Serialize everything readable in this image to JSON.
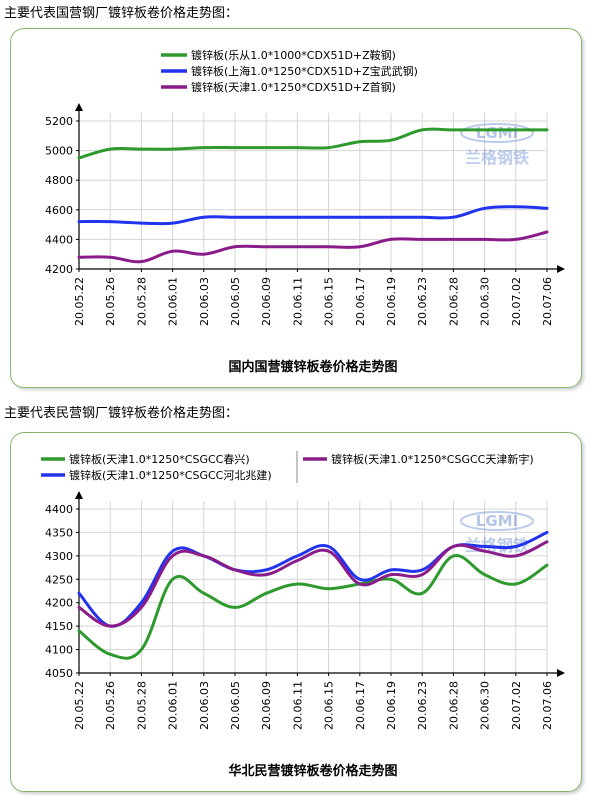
{
  "section_titles": [
    "主要代表国营钢厂镀锌板卷价格走势图：",
    "主要代表民营钢厂镀锌板卷价格走势图："
  ],
  "watermark": {
    "logo": "LGMI",
    "brand": "兰格钢铁"
  },
  "chart_data": [
    {
      "type": "line",
      "title": "国内国营镀锌板卷价格走势图",
      "xlabel": "",
      "ylabel": "",
      "ylim": [
        4200,
        5200
      ],
      "yticks": [
        4200,
        4400,
        4600,
        4800,
        5000,
        5200
      ],
      "categories": [
        "20.05.22",
        "20.05.26",
        "20.05.28",
        "20.06.01",
        "20.06.03",
        "20.06.05",
        "20.06.09",
        "20.06.11",
        "20.06.15",
        "20.06.17",
        "20.06.19",
        "20.06.23",
        "20.06.28",
        "20.06.30",
        "20.07.02",
        "20.07.06"
      ],
      "grid": true,
      "legend": "top",
      "series": [
        {
          "name": "镀锌板(乐从1.0*1000*CDX51D+Z鞍钢)",
          "color": "#2e9a2e",
          "values": [
            4950,
            5010,
            5010,
            5010,
            5020,
            5020,
            5020,
            5020,
            5020,
            5060,
            5070,
            5140,
            5140,
            5140,
            5140,
            5140
          ]
        },
        {
          "name": "镀锌板(上海1.0*1250*CDX51D+Z宝武武钢)",
          "color": "#2233ee",
          "values": [
            4520,
            4520,
            4510,
            4510,
            4550,
            4550,
            4550,
            4550,
            4550,
            4550,
            4550,
            4550,
            4550,
            4610,
            4620,
            4610
          ]
        },
        {
          "name": "镀锌板(天津1.0*1250*CDX51D+Z首钢)",
          "color": "#8a1c8a",
          "values": [
            4280,
            4280,
            4250,
            4320,
            4300,
            4350,
            4350,
            4350,
            4350,
            4350,
            4400,
            4400,
            4400,
            4400,
            4400,
            4450
          ]
        }
      ]
    },
    {
      "type": "line",
      "title": "华北民营镀锌板卷价格走势图",
      "xlabel": "",
      "ylabel": "",
      "ylim": [
        4050,
        4400
      ],
      "yticks": [
        4050,
        4100,
        4150,
        4200,
        4250,
        4300,
        4350,
        4400
      ],
      "categories": [
        "20.05.22",
        "20.05.26",
        "20.05.28",
        "20.06.01",
        "20.06.03",
        "20.06.05",
        "20.06.09",
        "20.06.11",
        "20.06.15",
        "20.06.17",
        "20.06.19",
        "20.06.23",
        "20.06.28",
        "20.06.30",
        "20.07.02",
        "20.07.06"
      ],
      "grid": true,
      "legend": "top",
      "series": [
        {
          "name": "镀锌板(天津1.0*1250*CSGCC春兴)",
          "color": "#2e9a2e",
          "values": [
            4140,
            4090,
            4100,
            4250,
            4220,
            4190,
            4220,
            4240,
            4230,
            4240,
            4250,
            4220,
            4300,
            4260,
            4240,
            4280
          ]
        },
        {
          "name": "镀锌板(天津1.0*1250*CSGCC河北兆建)",
          "color": "#2233ee",
          "values": [
            4220,
            4150,
            4200,
            4310,
            4300,
            4270,
            4270,
            4300,
            4320,
            4250,
            4270,
            4270,
            4320,
            4320,
            4320,
            4350
          ]
        },
        {
          "name": "镀锌板(天津1.0*1250*CSGCC天津新宇)",
          "color": "#8a1c8a",
          "values": [
            4190,
            4150,
            4190,
            4300,
            4300,
            4270,
            4260,
            4290,
            4310,
            4240,
            4260,
            4260,
            4320,
            4310,
            4300,
            4330
          ]
        }
      ]
    }
  ]
}
